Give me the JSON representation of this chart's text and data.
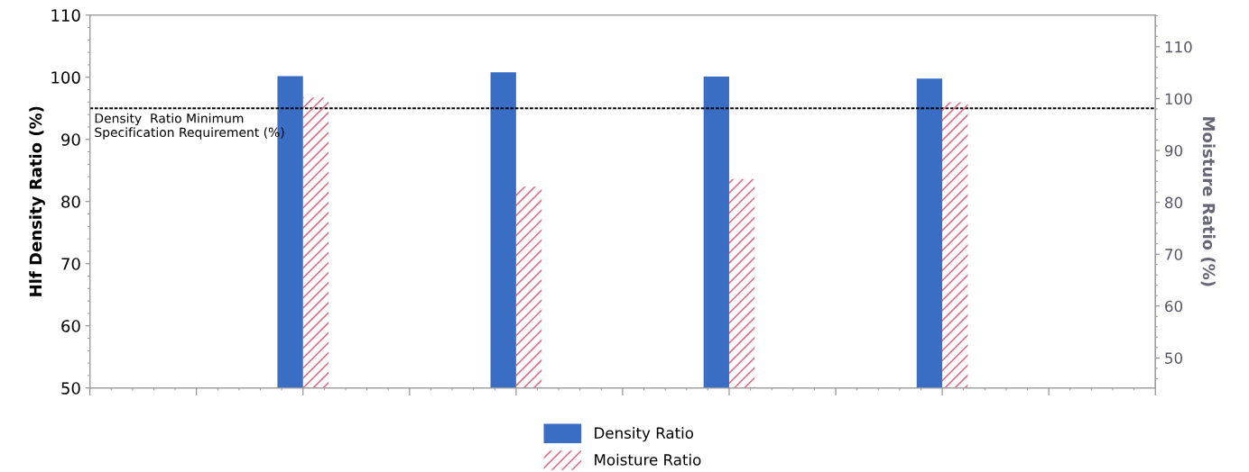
{
  "chart_data": {
    "type": "bar",
    "ylabel": "Hlf Density Ratio (%)",
    "y2label": "Moisture Ratio (%)",
    "categories": [
      null,
      null,
      null,
      null
    ],
    "series": [
      {
        "name": "Density Ratio",
        "color": "#3a6ec4",
        "values": [
          100.2,
          100.8,
          100.1,
          99.8
        ]
      },
      {
        "name": "Moisture Ratio",
        "color": "#e07088",
        "axis": "y2",
        "values": [
          100.2,
          83.0,
          84.5,
          99.3
        ]
      }
    ],
    "ylim": [
      50,
      110
    ],
    "yticks": [
      50,
      60,
      70,
      80,
      90,
      100,
      110
    ],
    "y2lim": [
      44.2,
      116.1
    ],
    "y2ticks": [
      50,
      60,
      70,
      80,
      90,
      100,
      110
    ],
    "ref_lines": [
      {
        "axis": "y",
        "value": 95,
        "label": "Density  Ratio Minimum Specification Requirement (%)",
        "color": "#000000",
        "line_style": "dotted"
      }
    ],
    "legend": "bottom",
    "tick_labels": "y",
    "grid": false
  }
}
